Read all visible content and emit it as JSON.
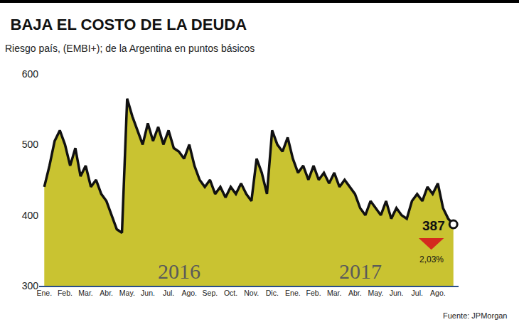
{
  "chart_data": {
    "type": "area",
    "title": "BAJA EL COSTO DE LA DEUDA",
    "subtitle": "Riesgo país, (EMBI+); de la Argentina en puntos básicos",
    "categories": [
      "Ene.",
      null,
      null,
      null,
      "Feb.",
      null,
      null,
      null,
      "Mar.",
      null,
      null,
      null,
      "Abr.",
      null,
      null,
      null,
      "May.",
      null,
      null,
      null,
      "Jun.",
      null,
      null,
      null,
      "Jul.",
      null,
      null,
      null,
      "Ago.",
      null,
      null,
      null,
      "Sep.",
      null,
      null,
      null,
      "Oct.",
      null,
      null,
      null,
      "Nov.",
      null,
      null,
      null,
      "Dic.",
      null,
      null,
      null,
      "Ene.",
      null,
      null,
      null,
      "Feb.",
      null,
      null,
      null,
      "Mar.",
      null,
      null,
      null,
      "Abr.",
      null,
      null,
      null,
      "May.",
      null,
      null,
      null,
      "Jun.",
      null,
      null,
      null,
      "Jul.",
      null,
      null,
      null,
      "Ago.",
      null,
      null,
      null
    ],
    "values": [
      440,
      470,
      505,
      520,
      500,
      470,
      495,
      455,
      470,
      440,
      450,
      430,
      420,
      400,
      380,
      375,
      565,
      540,
      520,
      500,
      530,
      505,
      525,
      500,
      520,
      495,
      490,
      480,
      500,
      470,
      450,
      440,
      450,
      430,
      440,
      425,
      440,
      430,
      445,
      430,
      420,
      480,
      460,
      430,
      520,
      500,
      490,
      510,
      480,
      460,
      470,
      450,
      470,
      450,
      460,
      445,
      460,
      440,
      450,
      440,
      430,
      410,
      400,
      420,
      410,
      400,
      420,
      395,
      410,
      400,
      395,
      420,
      430,
      420,
      440,
      430,
      445,
      410,
      395,
      387
    ],
    "color": "#c9c331",
    "ylim": [
      300,
      600
    ],
    "yticks": [
      300,
      400,
      500,
      600
    ],
    "grid": false,
    "annotations": [
      {
        "text": "2016"
      },
      {
        "text": "2017"
      },
      {
        "text": "387"
      },
      {
        "text": "2,03%"
      }
    ],
    "source": "Fuente: JPMorgan"
  }
}
